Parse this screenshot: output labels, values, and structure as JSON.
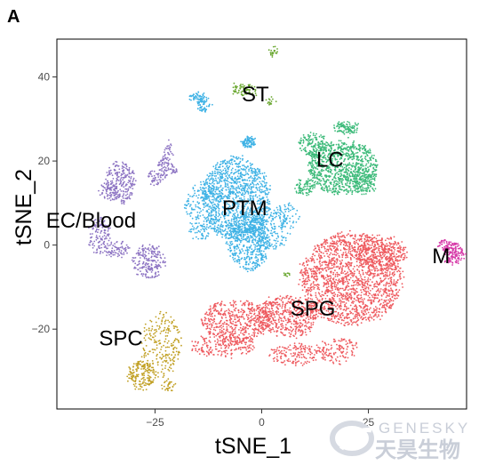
{
  "figure": {
    "panel_letter": "A",
    "watermark": {
      "brand": "GENESKY",
      "brand_cn": "天昊生物"
    }
  },
  "chart_data": {
    "type": "scatter",
    "title": "",
    "xlabel": "tSNE_1",
    "ylabel": "tSNE_2",
    "xlim": [
      -48,
      48
    ],
    "ylim": [
      -39,
      49
    ],
    "xticks": [
      -25,
      0,
      25
    ],
    "yticks": [
      -20,
      0,
      20,
      40
    ],
    "xtick_labels": [
      "−25",
      "0",
      "25"
    ],
    "ytick_labels": [
      "−20",
      "0",
      "20",
      "40"
    ],
    "grid": false,
    "legend": "none",
    "clusters": [
      {
        "name": "PTM",
        "color": "#3fb2e5",
        "label_at": [
          -4,
          8.5
        ],
        "regions": [
          [
            -6,
            11,
            8,
            10,
            1200
          ],
          [
            -3,
            1,
            5,
            7,
            500
          ],
          [
            -14,
            8,
            4,
            7,
            200
          ],
          [
            2,
            4,
            5,
            5,
            200
          ],
          [
            6,
            7,
            3,
            3,
            50
          ],
          [
            -3,
            24.5,
            1.5,
            1.2,
            90
          ],
          [
            -15,
            35,
            2.2,
            1,
            70
          ],
          [
            -13.5,
            33,
            1.6,
            1.4,
            40
          ]
        ]
      },
      {
        "name": "LC",
        "color": "#3cba79",
        "label_at": [
          16,
          20
        ],
        "regions": [
          [
            19,
            18.5,
            8,
            6.5,
            900
          ],
          [
            12,
            24,
            3.2,
            2.8,
            150
          ],
          [
            10,
            14,
            2.2,
            2,
            80
          ],
          [
            24,
            15,
            3,
            3,
            120
          ],
          [
            20,
            28,
            3,
            1.5,
            100
          ]
        ]
      },
      {
        "name": "SPG",
        "color": "#ee5a5f",
        "label_at": [
          12,
          -15.5
        ],
        "regions": [
          [
            21,
            -8,
            12,
            11,
            1700
          ],
          [
            6,
            -17,
            7,
            5,
            500
          ],
          [
            -6,
            -18,
            8,
            5,
            500
          ],
          [
            -9,
            -24,
            8,
            2.5,
            200
          ],
          [
            8,
            -26,
            6,
            2.5,
            150
          ],
          [
            28,
            -2,
            6,
            4,
            300
          ],
          [
            18,
            -25,
            5,
            3,
            130
          ]
        ]
      },
      {
        "name": "EC/Blood",
        "color": "#8d74c3",
        "label_at": [
          -40,
          5.5
        ],
        "regions": [
          [
            -33,
            15,
            3.5,
            5,
            230
          ],
          [
            -26.5,
            -4,
            4,
            4,
            200
          ],
          [
            -38,
            2,
            2.5,
            4.5,
            120
          ],
          [
            -36,
            13,
            2,
            2,
            60
          ],
          [
            -23,
            18.5,
            1.2,
            3,
            50
          ],
          [
            -25,
            16,
            1.5,
            2,
            40
          ],
          [
            -22,
            21,
            1,
            4,
            40
          ],
          [
            -20.5,
            18,
            1,
            1,
            20
          ],
          [
            -34,
            -1,
            3,
            2,
            70
          ]
        ]
      },
      {
        "name": "SPC",
        "color": "#c1a024",
        "label_at": [
          -33,
          -22.5
        ],
        "regions": [
          [
            -23.5,
            -23.5,
            4.5,
            7.5,
            220
          ],
          [
            -28,
            -31,
            3.5,
            3.5,
            180
          ],
          [
            -22,
            -33.5,
            1.5,
            1.5,
            30
          ]
        ]
      },
      {
        "name": "ST",
        "color": "#6aa730",
        "label_at": [
          -1.5,
          35.5
        ],
        "regions": [
          [
            -4,
            37,
            3,
            1.5,
            70
          ],
          [
            3,
            46,
            1,
            1,
            20
          ],
          [
            2,
            34,
            1,
            1,
            15
          ],
          [
            6,
            -7,
            0.6,
            0.5,
            10
          ]
        ]
      },
      {
        "name": "M",
        "color": "#d63aa8",
        "label_at": [
          42,
          -3
        ],
        "regions": [
          [
            45,
            -2,
            2.5,
            2.5,
            150
          ],
          [
            43,
            0,
            1.5,
            1.5,
            40
          ]
        ]
      }
    ]
  }
}
